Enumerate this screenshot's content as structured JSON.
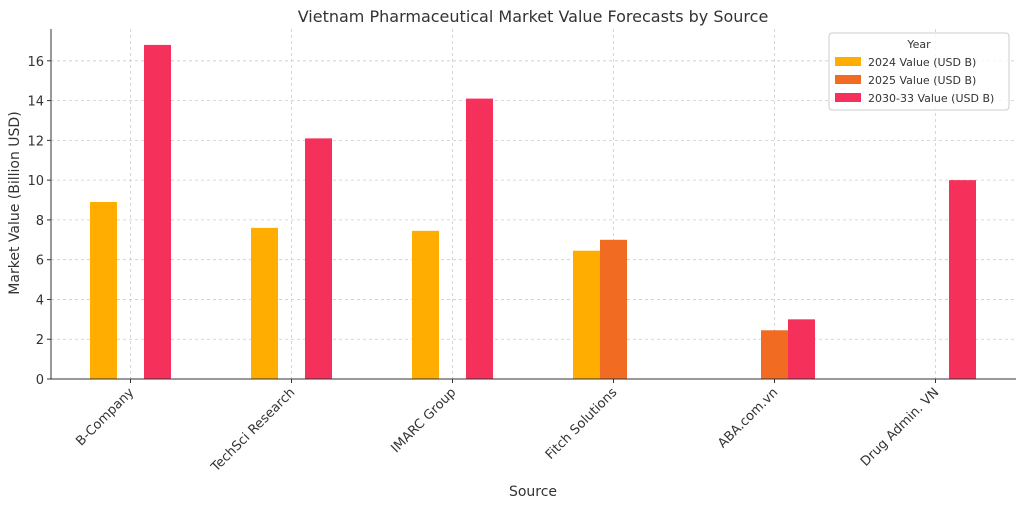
{
  "chart_data": {
    "type": "bar",
    "title": "Vietnam Pharmaceutical Market Value Forecasts by Source",
    "xlabel": "Source",
    "ylabel": "Market Value (Billion USD)",
    "categories": [
      "B-Company",
      "TechSci Research",
      "IMARC Group",
      "Fitch Solutions",
      "ABA.com.vn",
      "Drug Admin. VN"
    ],
    "series": [
      {
        "name": "2024 Value (USD B)",
        "color": "#FFAD00",
        "values": [
          8.9,
          7.6,
          7.45,
          6.45,
          null,
          null
        ]
      },
      {
        "name": "2025 Value (USD B)",
        "color": "#F26B22",
        "values": [
          null,
          null,
          null,
          7.0,
          2.45,
          null
        ]
      },
      {
        "name": "2030-33 Value (USD B)",
        "color": "#F5305A",
        "values": [
          16.8,
          12.1,
          14.1,
          null,
          3.0,
          10.0
        ]
      }
    ],
    "ylim": [
      0,
      17.6
    ],
    "yticks": [
      0,
      2,
      4,
      6,
      8,
      10,
      12,
      14,
      16
    ],
    "grid": true,
    "legend": {
      "title": "Year",
      "position": "top-right"
    }
  }
}
